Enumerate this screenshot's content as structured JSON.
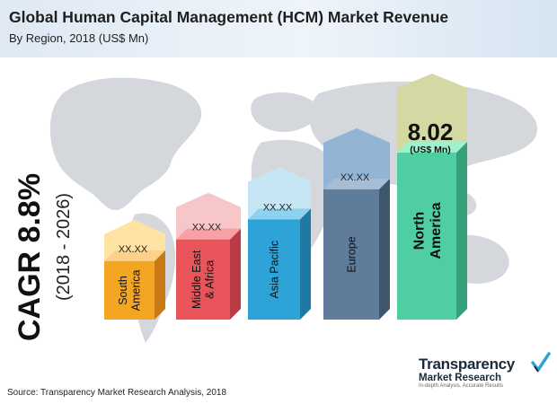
{
  "title": "Global Human Capital Management (HCM) Market Revenue",
  "subtitle": "By Region, 2018 (US$ Mn)",
  "cagr": {
    "label": "CAGR 8.8%",
    "period": "(2018 - 2026)"
  },
  "source": "Source: Transparency Market Research Analysis, 2018",
  "logo": {
    "line1": "Transparency",
    "line2": "Market Research",
    "tagline": "In-depth Analysis. Accurate Results"
  },
  "chart_data": {
    "type": "bar",
    "title": "Global Human Capital Management (HCM) Market Revenue",
    "subtitle": "By Region, 2018 (US$ Mn)",
    "categories": [
      "South America",
      "Middle East & Africa",
      "Asia Pacific",
      "Europe",
      "North America"
    ],
    "category_lines": [
      [
        "South",
        "America"
      ],
      [
        "Middle East",
        "& Africa"
      ],
      [
        "Asia Pacific"
      ],
      [
        "Europe"
      ],
      [
        "North",
        "America"
      ]
    ],
    "value_labels": [
      "XX.XX",
      "XX.XX",
      "XX.XX",
      "XX.XX",
      "8.02"
    ],
    "highlight_unit": "(US$ Mn)",
    "relative_heights": [
      0.35,
      0.48,
      0.6,
      0.78,
      1.0
    ],
    "colors": {
      "front": [
        "#f4a623",
        "#e9545b",
        "#2ea3d8",
        "#5f7c9b",
        "#4fcfa1"
      ],
      "side": [
        "#c77a14",
        "#b93b43",
        "#1f79a3",
        "#3e566e",
        "#36a07b"
      ],
      "top": [
        "#ffd08a",
        "#f8a0a4",
        "#8fd2ef",
        "#a7bdd3",
        "#9ff0cd"
      ],
      "arrow": [
        "#ffe3a3",
        "#f7c6c8",
        "#c7e6f5",
        "#94b4d6",
        "#d4d9a3"
      ]
    },
    "xlabel": "",
    "ylabel": "",
    "grid": false,
    "legend": "none"
  }
}
